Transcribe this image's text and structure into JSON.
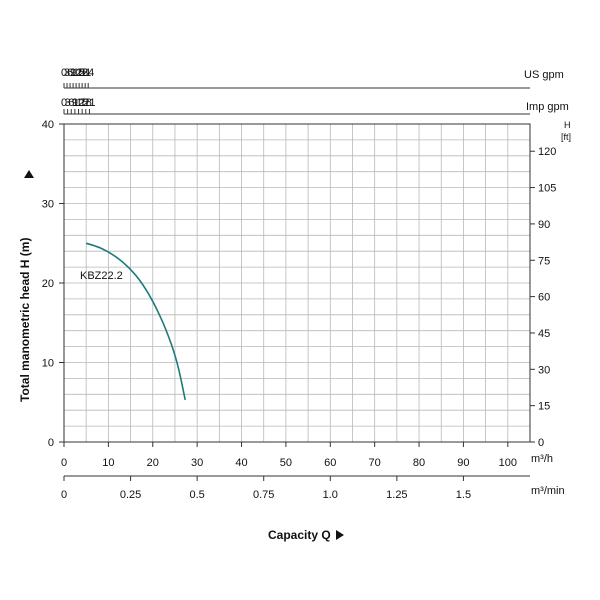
{
  "chart_data": {
    "type": "line",
    "title": "",
    "xlabel": "Capacity Q",
    "ylabel": "Total manometric head H (m)",
    "grid": true,
    "xlim": [
      0,
      105
    ],
    "ylim": [
      0,
      40
    ],
    "series": [
      {
        "name": "KBZ22.2",
        "x": [
          5,
          8,
          11,
          14,
          17,
          20,
          23,
          25.5,
          27.3
        ],
        "y": [
          25,
          24.5,
          23.6,
          22.3,
          20.5,
          17.8,
          14.2,
          10.2,
          5.3
        ],
        "color": "#1e7a7a"
      }
    ],
    "axes": {
      "bottom_primary": {
        "unit": "m³/h",
        "ticks": [
          "0",
          "10",
          "20",
          "30",
          "40",
          "50",
          "60",
          "70",
          "80",
          "90",
          "100"
        ]
      },
      "bottom_secondary": {
        "unit": "m³/min",
        "ticks": [
          "0",
          "0.25",
          "0.5",
          "0.75",
          "1.0",
          "1.25",
          "1.5"
        ]
      },
      "top_us": {
        "unit": "US gpm",
        "ticks": [
          "0",
          "3",
          "6",
          "9",
          "12",
          "15",
          "18",
          "21",
          "24"
        ]
      },
      "top_imp": {
        "unit": "Imp gpm",
        "ticks": [
          "0",
          "3",
          "6",
          "9",
          "12",
          "15",
          "18",
          "21"
        ]
      },
      "left": {
        "ticks": [
          "0",
          "10",
          "20",
          "30",
          "40"
        ]
      },
      "right": {
        "unit_top": "H",
        "unit_bottom": "[ft]",
        "ticks": [
          "0",
          "15",
          "30",
          "45",
          "60",
          "75",
          "90",
          "105",
          "120"
        ]
      }
    }
  }
}
